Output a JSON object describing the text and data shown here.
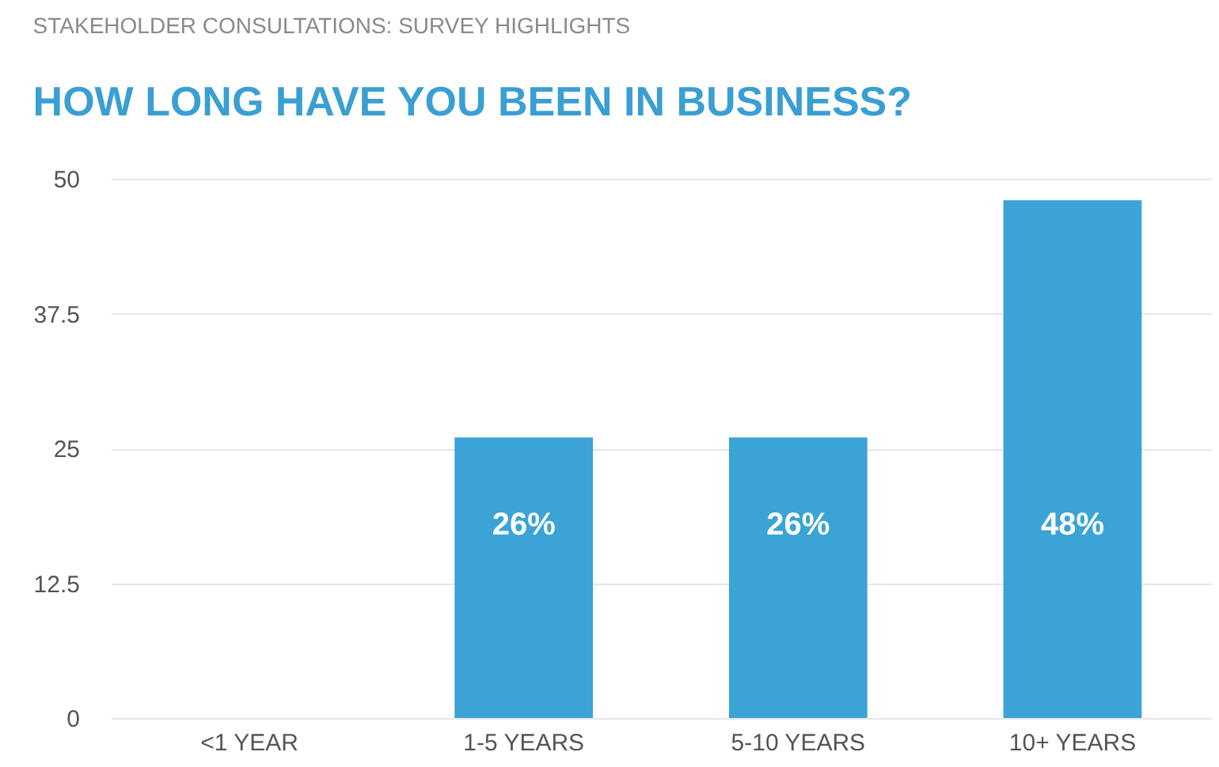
{
  "chart_data": {
    "type": "bar",
    "title": "STAKEHOLDER CONSULTATIONS: SURVEY HIGHLIGHTS",
    "subtitle": "HOW LONG HAVE YOU BEEN IN BUSINESS?",
    "categories": [
      "<1 YEAR",
      "1-5 YEARS",
      "5-10 YEARS",
      "10+ YEARS"
    ],
    "values": [
      0,
      26,
      26,
      48
    ],
    "value_labels": [
      null,
      "26%",
      "26%",
      "48%"
    ],
    "color": "#3ba3d6",
    "ylim": [
      0,
      50
    ],
    "yticks": [
      0,
      12.5,
      25,
      37.5,
      50
    ],
    "grid": "y"
  }
}
